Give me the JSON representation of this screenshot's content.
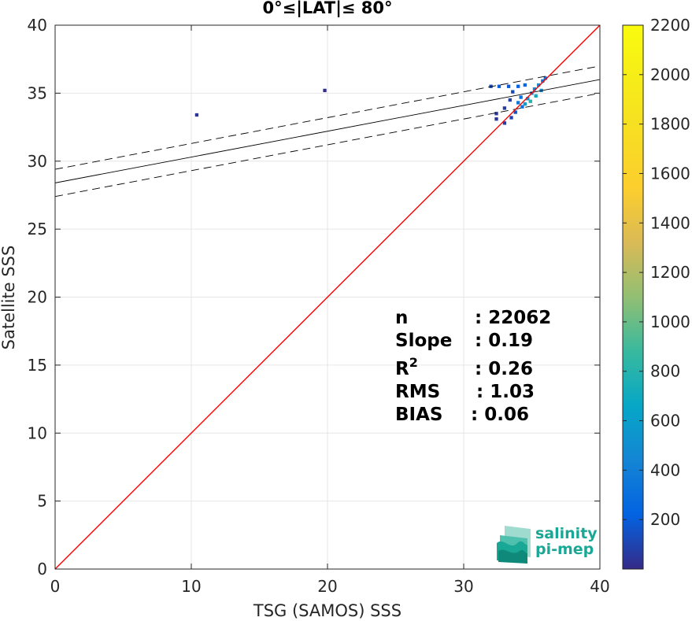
{
  "chart_data": {
    "type": "heatmap",
    "title": "0°≤|LAT|≤ 80°",
    "xlabel": "TSG (SAMOS) SSS",
    "ylabel": "Satellite SSS",
    "xlim": [
      0,
      40
    ],
    "ylim": [
      0,
      40
    ],
    "xticks": [
      "0",
      "10",
      "20",
      "30",
      "40"
    ],
    "yticks": [
      "0",
      "5",
      "10",
      "15",
      "20",
      "25",
      "30",
      "35",
      "40"
    ],
    "grid": true,
    "colorbar": {
      "range": [
        0,
        2200
      ],
      "ticks": [
        "200",
        "400",
        "600",
        "800",
        "1000",
        "1200",
        "1400",
        "1600",
        "1800",
        "2000",
        "2200"
      ],
      "colormap": "parula"
    },
    "identity_line": {
      "color": "#ff0000"
    },
    "regression": {
      "slope": 0.19,
      "intercept": 28.4,
      "offset": 1.0
    },
    "stats": [
      {
        "label": "n",
        "value": ": 22062"
      },
      {
        "label": "Slope",
        "value": ": 0.19"
      },
      {
        "label": "R",
        "sup": "2",
        "value": ": 0.26"
      },
      {
        "label": "RMS",
        "value": ": 1.03"
      },
      {
        "label": "BIAS",
        "value": ": 0.06"
      }
    ],
    "density_cells": [
      {
        "x": 10.4,
        "y": 33.4,
        "count": 40
      },
      {
        "x": 19.8,
        "y": 35.2,
        "count": 10
      },
      {
        "x": 32.0,
        "y": 35.5,
        "count": 150
      },
      {
        "x": 32.6,
        "y": 35.5,
        "count": 200
      },
      {
        "x": 33.3,
        "y": 35.5,
        "count": 180
      },
      {
        "x": 34.0,
        "y": 35.5,
        "count": 220
      },
      {
        "x": 34.5,
        "y": 35.6,
        "count": 250
      },
      {
        "x": 33.6,
        "y": 35.1,
        "count": 120
      },
      {
        "x": 34.2,
        "y": 34.7,
        "count": 300
      },
      {
        "x": 34.7,
        "y": 34.6,
        "count": 500
      },
      {
        "x": 35.0,
        "y": 35.0,
        "count": 400
      },
      {
        "x": 35.2,
        "y": 35.3,
        "count": 450
      },
      {
        "x": 35.5,
        "y": 35.6,
        "count": 500
      },
      {
        "x": 35.8,
        "y": 35.9,
        "count": 350
      },
      {
        "x": 36.0,
        "y": 36.1,
        "count": 300
      },
      {
        "x": 34.5,
        "y": 34.2,
        "count": 600
      },
      {
        "x": 34.9,
        "y": 34.4,
        "count": 800
      },
      {
        "x": 35.3,
        "y": 34.8,
        "count": 700
      },
      {
        "x": 35.7,
        "y": 35.2,
        "count": 500
      },
      {
        "x": 34.3,
        "y": 34.0,
        "count": 300
      },
      {
        "x": 33.8,
        "y": 33.6,
        "count": 150
      },
      {
        "x": 33.5,
        "y": 33.2,
        "count": 100
      },
      {
        "x": 33.0,
        "y": 32.8,
        "count": 60
      },
      {
        "x": 33.4,
        "y": 34.5,
        "count": 80
      },
      {
        "x": 34.0,
        "y": 34.3,
        "count": 350
      },
      {
        "x": 32.4,
        "y": 33.5,
        "count": 50
      },
      {
        "x": 32.4,
        "y": 33.1,
        "count": 40
      },
      {
        "x": 33.0,
        "y": 33.9,
        "count": 60
      }
    ]
  },
  "logo": {
    "line1": "salinity",
    "line2": "pi-mep",
    "color": "#1aa896"
  }
}
